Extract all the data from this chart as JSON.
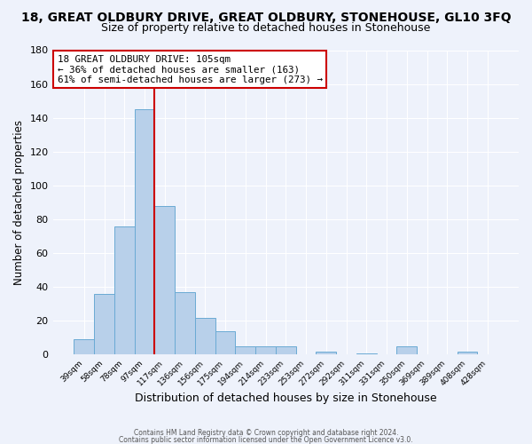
{
  "title_line1": "18, GREAT OLDBURY DRIVE, GREAT OLDBURY, STONEHOUSE, GL10 3FQ",
  "title_line2": "Size of property relative to detached houses in Stonehouse",
  "xlabel": "Distribution of detached houses by size in Stonehouse",
  "ylabel": "Number of detached properties",
  "footer_line1": "Contains HM Land Registry data © Crown copyright and database right 2024.",
  "footer_line2": "Contains public sector information licensed under the Open Government Licence v3.0.",
  "bar_labels": [
    "39sqm",
    "58sqm",
    "78sqm",
    "97sqm",
    "117sqm",
    "136sqm",
    "156sqm",
    "175sqm",
    "194sqm",
    "214sqm",
    "233sqm",
    "253sqm",
    "272sqm",
    "292sqm",
    "311sqm",
    "331sqm",
    "350sqm",
    "369sqm",
    "389sqm",
    "408sqm",
    "428sqm"
  ],
  "bar_values": [
    9,
    36,
    76,
    145,
    88,
    37,
    22,
    14,
    5,
    5,
    5,
    0,
    2,
    0,
    1,
    0,
    5,
    0,
    0,
    2,
    0
  ],
  "bar_color": "#b8d0ea",
  "bar_edge_color": "#6aaad4",
  "annotation_title": "18 GREAT OLDBURY DRIVE: 105sqm",
  "annotation_line2": "← 36% of detached houses are smaller (163)",
  "annotation_line3": "61% of semi-detached houses are larger (273) →",
  "annotation_box_color": "#ffffff",
  "annotation_border_color": "#cc0000",
  "red_line_index": 3.5,
  "ylim": [
    0,
    180
  ],
  "yticks": [
    0,
    20,
    40,
    60,
    80,
    100,
    120,
    140,
    160,
    180
  ],
  "background_color": "#eef2fb",
  "grid_color": "#ffffff",
  "title1_fontsize": 10,
  "title2_fontsize": 9,
  "xlabel_fontsize": 9,
  "ylabel_fontsize": 8.5
}
